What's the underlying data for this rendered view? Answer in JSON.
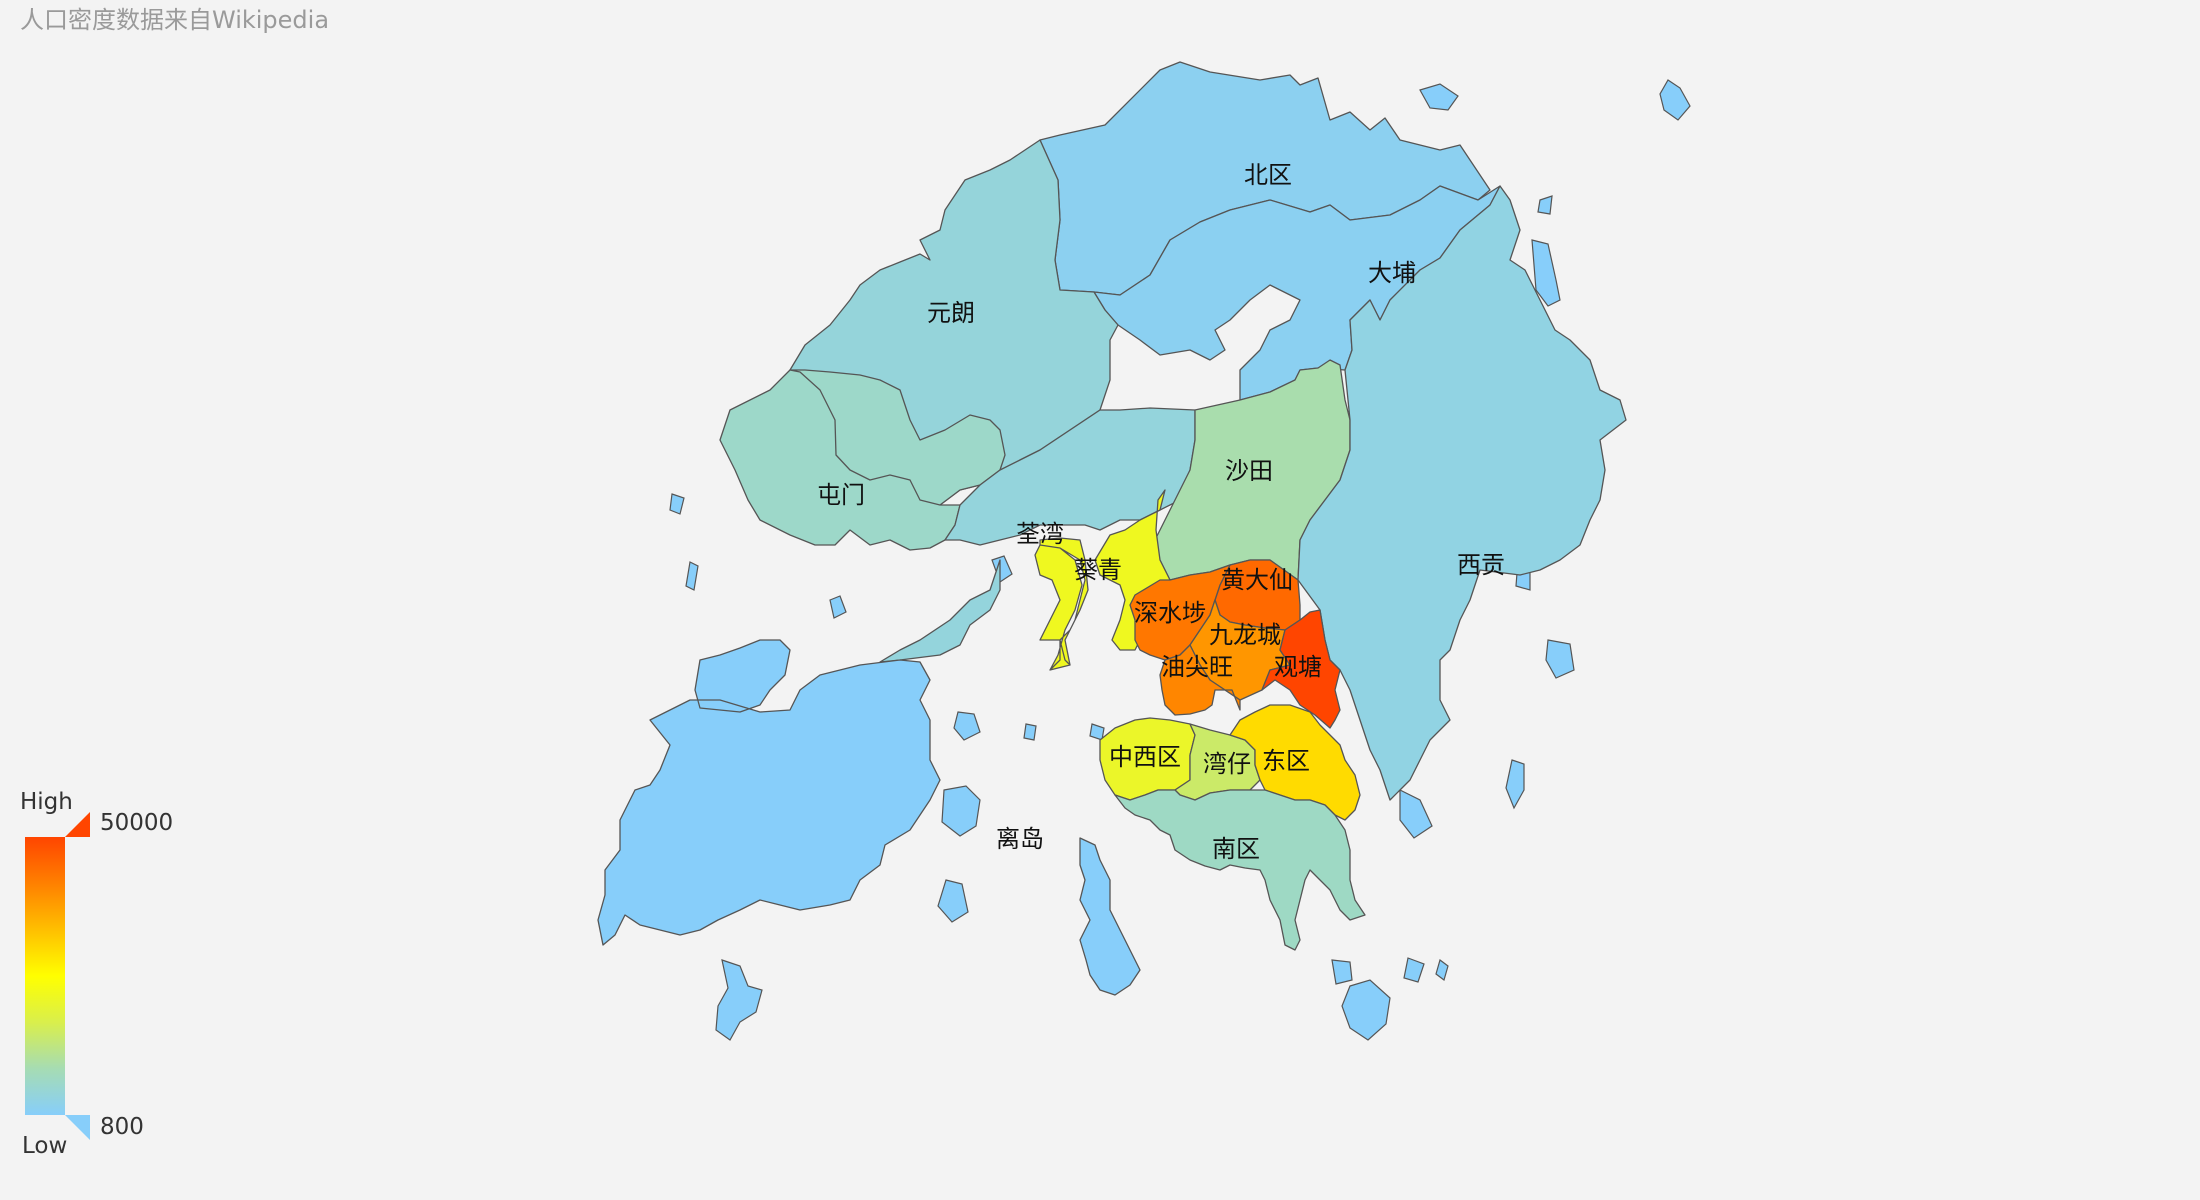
{
  "subtitle": "人口密度数据来自Wikipedia",
  "map": {
    "type": "choropleth",
    "region": "Hong Kong districts",
    "districts": [
      {
        "name": "北区",
        "density": 2000
      },
      {
        "name": "大埔",
        "density": 1800
      },
      {
        "name": "元朗",
        "density": 4500
      },
      {
        "name": "屯门",
        "density": 6500
      },
      {
        "name": "沙田",
        "density": 9500
      },
      {
        "name": "荃湾",
        "density": 4300
      },
      {
        "name": "葵青",
        "density": 22000
      },
      {
        "name": "西贡",
        "density": 3500
      },
      {
        "name": "黄大仙",
        "density": 45000
      },
      {
        "name": "深水埗",
        "density": 43000
      },
      {
        "name": "九龙城",
        "density": 39000
      },
      {
        "name": "观塘",
        "density": 50000
      },
      {
        "name": "油尖旺",
        "density": 41000
      },
      {
        "name": "离岛",
        "density": 800
      },
      {
        "name": "中西区",
        "density": 21000
      },
      {
        "name": "湾仔",
        "density": 15000
      },
      {
        "name": "东区",
        "density": 30000
      },
      {
        "name": "南区",
        "density": 7000
      }
    ]
  },
  "visual_map": {
    "high_label": "High",
    "low_label": "Low",
    "max": 50000,
    "min": 800,
    "max_text": "50000",
    "min_text": "800",
    "colors": [
      "#87cefa",
      "#a6dcb3",
      "#d9ef4c",
      "#ffff00",
      "#ffbf00",
      "#ff8000",
      "#ff4500"
    ]
  }
}
